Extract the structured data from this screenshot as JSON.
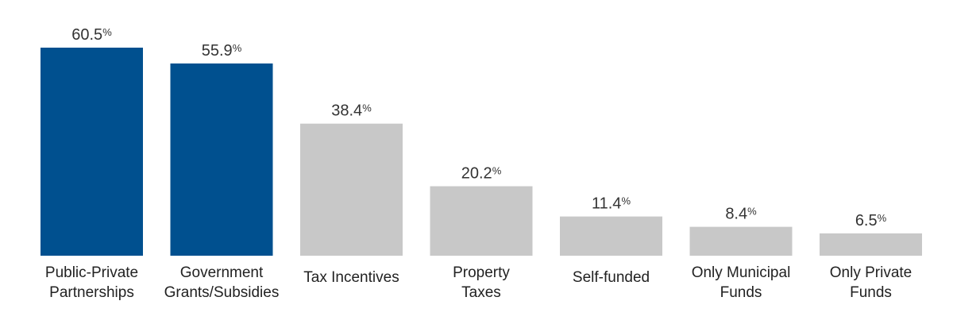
{
  "chart_data": {
    "type": "bar",
    "categories": [
      [
        "Public-Private",
        "Partnerships"
      ],
      [
        "Government",
        "Grants/Subsidies"
      ],
      [
        "Tax Incentives"
      ],
      [
        "Property",
        "Taxes"
      ],
      [
        "Self-funded"
      ],
      [
        "Only Municipal",
        "Funds"
      ],
      [
        "Only Private",
        "Funds"
      ]
    ],
    "values": [
      60.5,
      55.9,
      38.4,
      20.2,
      11.4,
      8.4,
      6.5
    ],
    "value_labels": [
      "60.5",
      "55.9",
      "38.4",
      "20.2",
      "11.4",
      "8.4",
      "6.5"
    ],
    "unit": "%",
    "ylim": [
      0,
      60.5
    ],
    "colors": [
      "#00508F",
      "#00508F",
      "#C8C8C8",
      "#C8C8C8",
      "#C8C8C8",
      "#C8C8C8",
      "#C8C8C8"
    ],
    "grid": false,
    "legend": "none"
  }
}
